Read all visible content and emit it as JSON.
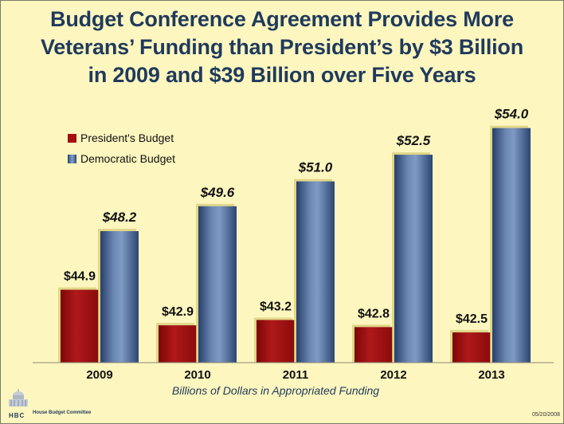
{
  "title_lines": [
    "Budget Conference Agreement Provides More",
    "Veterans’ Funding than President’s by $3 Billion",
    "in 2009 and $39 Billion over Five Years"
  ],
  "footer": {
    "logo_text": "HBC",
    "committee": "House Budget Committee",
    "date": "05/20/2008"
  },
  "chart_data": {
    "type": "bar",
    "title": "Budget Conference Agreement Provides More Veterans’ Funding than President’s by $3 Billion in 2009 and $39 Billion over Five Years",
    "xlabel": "Billions of Dollars in Appropriated Funding",
    "ylabel": "",
    "categories": [
      "2009",
      "2010",
      "2011",
      "2012",
      "2013"
    ],
    "series": [
      {
        "name": "President's Budget",
        "values": [
          44.9,
          42.9,
          43.2,
          42.8,
          42.5
        ],
        "labels": [
          "$44.9",
          "$42.9",
          "$43.2",
          "$42.8",
          "$42.5"
        ],
        "color": "#a30f10"
      },
      {
        "name": "Democratic Budget",
        "values": [
          48.2,
          49.6,
          51.0,
          52.5,
          54.0
        ],
        "labels": [
          "$48.2",
          "$49.6",
          "$51.0",
          "$52.5",
          "$54.0"
        ],
        "color": "#3d5a85"
      }
    ],
    "ylim": [
      40.8,
      55.6
    ],
    "grid": false,
    "legend": "top-left"
  }
}
